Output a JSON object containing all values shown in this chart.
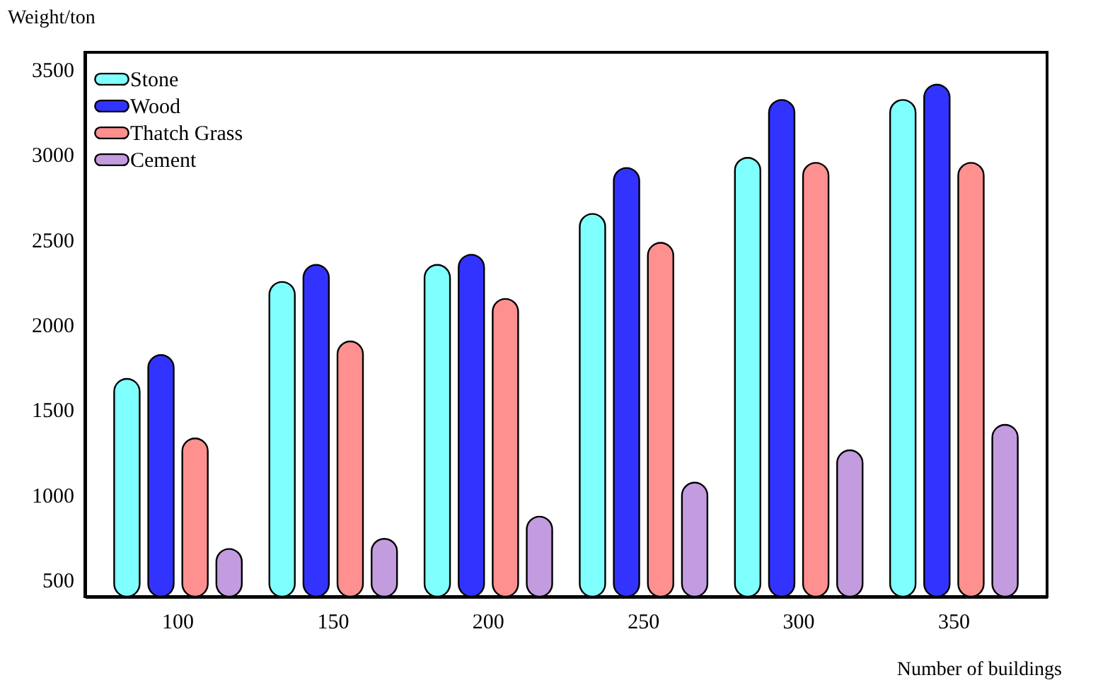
{
  "chart_data": {
    "type": "bar",
    "xlabel": "Number of buildings",
    "ylabel": "Weight/ton",
    "categories": [
      "100",
      "150",
      "200",
      "250",
      "300",
      "350"
    ],
    "series": [
      {
        "name": "Stone",
        "color": "#80ffff",
        "values": [
          1680,
          2250,
          2350,
          2650,
          2980,
          3320
        ]
      },
      {
        "name": "Wood",
        "color": "#3333ff",
        "values": [
          1820,
          2350,
          2410,
          2920,
          3320,
          3410
        ]
      },
      {
        "name": "Thatch Grass",
        "color": "#ff9090",
        "values": [
          1330,
          1900,
          2150,
          2480,
          2950,
          2950
        ]
      },
      {
        "name": "Cement",
        "color": "#c39bdf",
        "values": [
          680,
          740,
          870,
          1070,
          1260,
          1410
        ]
      }
    ],
    "ylim": [
      400,
      3600
    ],
    "yticks": [
      500,
      1000,
      1500,
      2000,
      2500,
      3000,
      3500
    ],
    "grid": false,
    "legend": "top left"
  }
}
